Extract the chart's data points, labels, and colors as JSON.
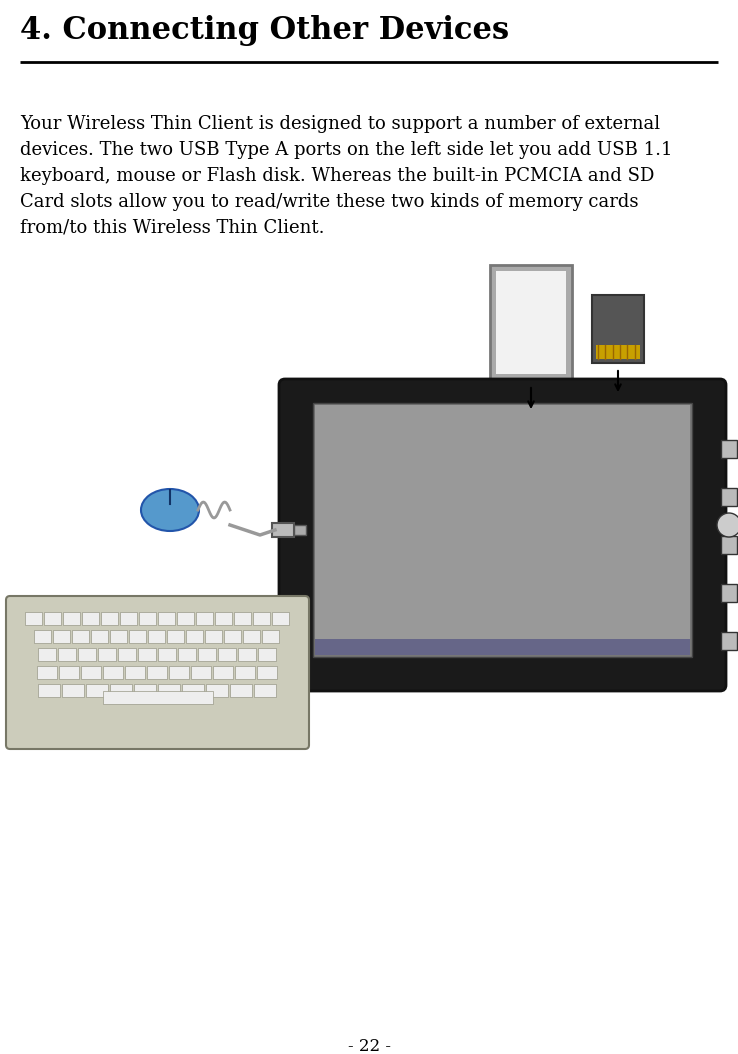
{
  "title": "4. Connecting Other Devices",
  "body_lines": [
    "Your Wireless Thin Client is designed to support a number of external",
    "devices. The two USB Type A ports on the left side let you add USB 1.1",
    "keyboard, mouse or Flash disk. Whereas the built-in PCMCIA and SD",
    "Card slots allow you to read/write these two kinds of memory cards",
    "from/to this Wireless Thin Client."
  ],
  "page_number": "- 22 -",
  "background_color": "#ffffff",
  "title_fontsize": 22,
  "body_fontsize": 13,
  "page_fontsize": 12,
  "title_color": "#000000",
  "body_color": "#000000"
}
